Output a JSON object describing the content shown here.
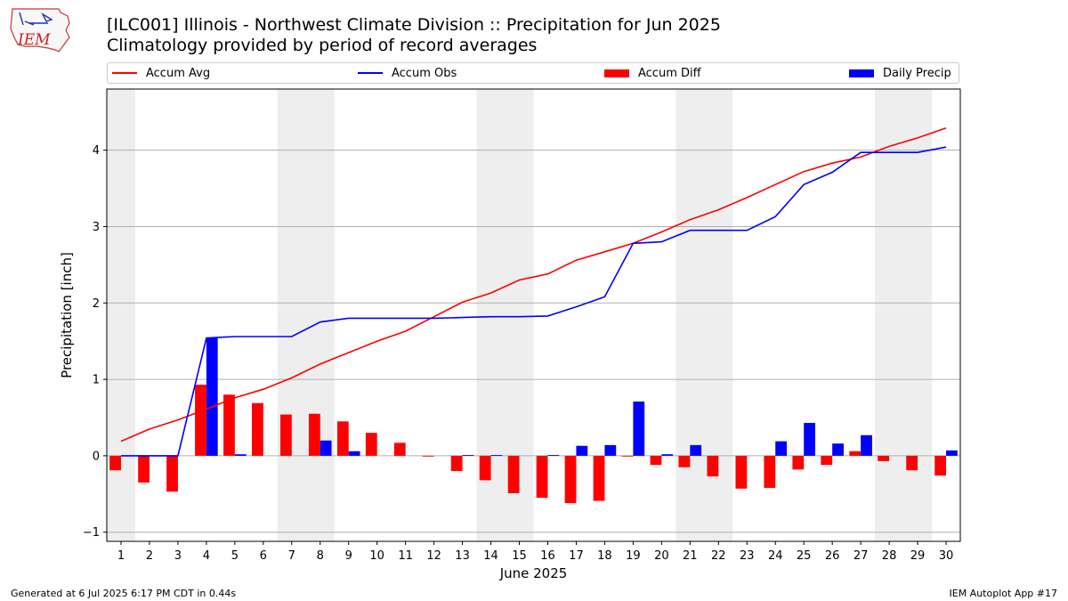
{
  "header": {
    "logo_text": "IEM",
    "title_line1": "[ILC001] Illinois - Northwest Climate Division :: Precipitation for Jun 2025",
    "title_line2": "Climatology provided by period of record averages"
  },
  "legend": [
    {
      "label": "Accum Avg",
      "color": "#ff0000",
      "kind": "line"
    },
    {
      "label": "Accum Obs",
      "color": "#0000ff",
      "kind": "line"
    },
    {
      "label": "Accum Diff",
      "color": "#ff0000",
      "kind": "box"
    },
    {
      "label": "Daily Precip",
      "color": "#0000ff",
      "kind": "box"
    }
  ],
  "footer": {
    "left": "Generated at 6 Jul 2025 6:17 PM CDT in 0.44s",
    "right": "IEM Autoplot App #17"
  },
  "chart_data": {
    "type": "bar",
    "xlabel": "June 2025",
    "ylabel": "Precipitation [inch]",
    "ylim": [
      -1.12,
      4.8
    ],
    "xlim": [
      0.5,
      30.5
    ],
    "yticks": [
      -1,
      0,
      1,
      2,
      3,
      4
    ],
    "grid": "horizontal",
    "legend_placement": "top",
    "weekend_days": [
      1,
      7,
      8,
      14,
      15,
      21,
      22,
      28,
      29
    ],
    "days": [
      1,
      2,
      3,
      4,
      5,
      6,
      7,
      8,
      9,
      10,
      11,
      12,
      13,
      14,
      15,
      16,
      17,
      18,
      19,
      20,
      21,
      22,
      23,
      24,
      25,
      26,
      27,
      28,
      29,
      30
    ],
    "series": [
      {
        "name": "Accum Avg",
        "kind": "line",
        "color": "#ff0000",
        "values": [
          0.19,
          0.35,
          0.47,
          0.61,
          0.76,
          0.87,
          1.02,
          1.2,
          1.35,
          1.5,
          1.63,
          1.82,
          2.01,
          2.13,
          2.3,
          2.38,
          2.56,
          2.67,
          2.78,
          2.93,
          3.09,
          3.22,
          3.38,
          3.55,
          3.72,
          3.83,
          3.91,
          4.05,
          4.16,
          4.29
        ]
      },
      {
        "name": "Accum Obs",
        "kind": "line",
        "color": "#0000ff",
        "values": [
          0.0,
          0.0,
          0.0,
          1.54,
          1.56,
          1.56,
          1.56,
          1.75,
          1.8,
          1.8,
          1.8,
          1.8,
          1.81,
          1.82,
          1.82,
          1.83,
          1.95,
          2.08,
          2.78,
          2.8,
          2.95,
          2.95,
          2.95,
          3.13,
          3.55,
          3.71,
          3.97,
          3.97,
          3.97,
          4.04
        ]
      },
      {
        "name": "Accum Diff",
        "kind": "bar",
        "color": "#ff0000",
        "values": [
          -0.19,
          -0.35,
          -0.47,
          0.93,
          0.8,
          0.69,
          0.54,
          0.55,
          0.45,
          0.3,
          0.17,
          -0.01,
          -0.2,
          -0.32,
          -0.49,
          -0.55,
          -0.62,
          -0.59,
          -0.01,
          -0.12,
          -0.15,
          -0.27,
          -0.43,
          -0.42,
          -0.18,
          -0.12,
          0.06,
          -0.07,
          -0.19,
          -0.26
        ]
      },
      {
        "name": "Daily Precip",
        "kind": "bar",
        "color": "#0000ff",
        "values": [
          0.0,
          0.0,
          0.0,
          1.54,
          0.02,
          0.0,
          0.0,
          0.2,
          0.06,
          0.0,
          0.0,
          0.0,
          0.01,
          0.01,
          0.0,
          0.01,
          0.13,
          0.14,
          0.71,
          0.02,
          0.14,
          0.0,
          0.0,
          0.19,
          0.43,
          0.16,
          0.27,
          0.0,
          0.0,
          0.07
        ]
      }
    ]
  }
}
